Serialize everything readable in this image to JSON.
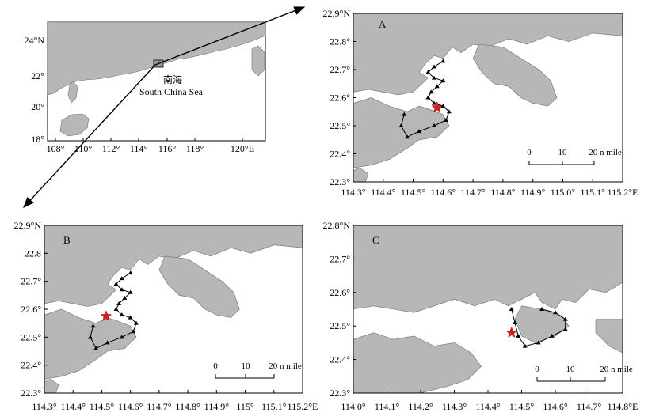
{
  "inset": {
    "xticks": [
      "108°",
      "110°",
      "112°",
      "114°",
      "116°",
      "118°",
      "120°E"
    ],
    "yticks": [
      "24°N",
      "22°",
      "20°",
      "18°"
    ],
    "label_cn": "南海",
    "label_en": "South China Sea"
  },
  "panels": [
    {
      "id": "A",
      "label": "A",
      "xticks": [
        "114.3°",
        "114.4°",
        "114.5°",
        "114.6°",
        "114.7°",
        "114.8°",
        "114.9°",
        "115.0°",
        "115.1°",
        "115.2°E"
      ],
      "yticks": [
        "22.9°N",
        "22.8°",
        "22.7°",
        "22.6°",
        "22.5°",
        "22.4°",
        "22.3°"
      ],
      "scalebar": [
        "0",
        "10",
        "20 n mile"
      ],
      "star_lonlat": [
        114.58,
        22.565
      ]
    },
    {
      "id": "B",
      "label": "B",
      "xticks": [
        "114.3°",
        "114.4°",
        "114.5°",
        "114.6°",
        "114.7°",
        "114.8°",
        "114.9°",
        "115°",
        "115.1°",
        "115.2°E"
      ],
      "yticks": [
        "22.9°N",
        "22.8",
        "22.7°",
        "22.6°",
        "22.5°",
        "22.4°",
        "22.3°"
      ],
      "scalebar": [
        "0",
        "10",
        "20 n mile"
      ],
      "star_lonlat": [
        114.515,
        22.575
      ]
    },
    {
      "id": "C",
      "label": "C",
      "xticks": [
        "114.0°",
        "114.1°",
        "114.2°",
        "114.3°",
        "114.4°",
        "114.5°",
        "114.6°",
        "114.7°",
        "114.8°E"
      ],
      "yticks": [
        "22.8°N",
        "22.7°",
        "22.6°",
        "22.5°",
        "22.4°",
        "22.3°"
      ],
      "scalebar": [
        "0",
        "10",
        "20 n mile"
      ],
      "star_lonlat": [
        114.47,
        22.48
      ]
    }
  ],
  "colors": {
    "land": "#b7b7b7",
    "star": "#e11c1c",
    "marker": "#000000"
  }
}
